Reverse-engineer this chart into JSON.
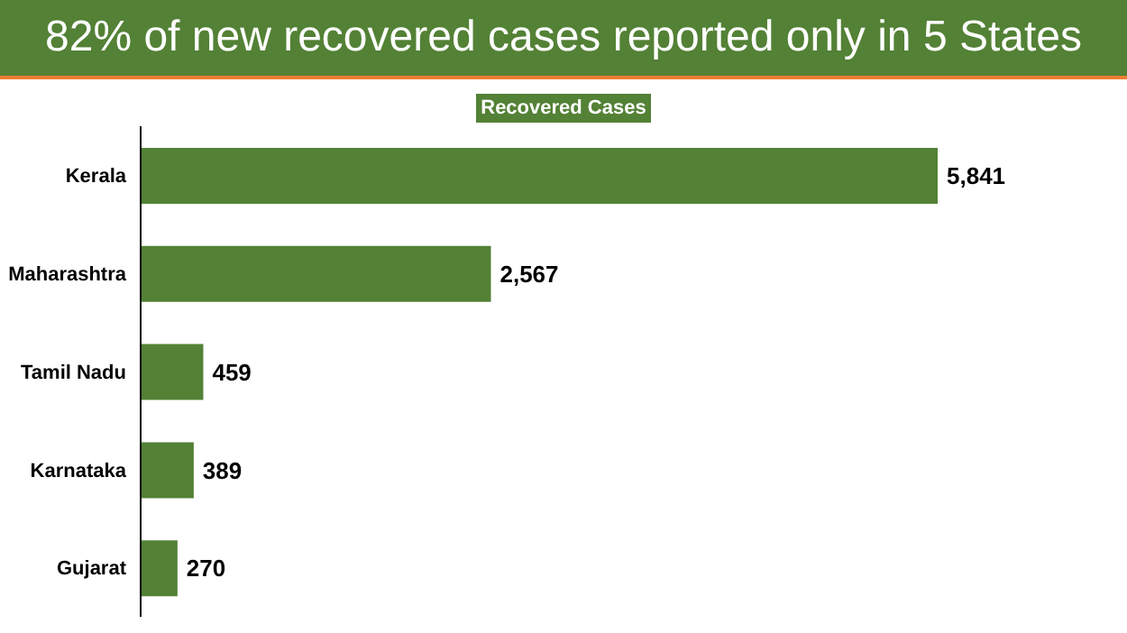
{
  "chart_data": {
    "type": "bar",
    "orientation": "horizontal",
    "title": "82% of new recovered cases reported only in 5 States",
    "subtitle": "Recovered Cases",
    "categories": [
      "Kerala",
      "Maharashtra",
      "Tamil Nadu",
      "Karnataka",
      "Gujarat"
    ],
    "values": [
      5841,
      2567,
      459,
      389,
      270
    ],
    "value_labels": [
      "5,841",
      "2,567",
      "459",
      "389",
      "270"
    ],
    "color": "#538135",
    "grid": false,
    "legend": false
  }
}
